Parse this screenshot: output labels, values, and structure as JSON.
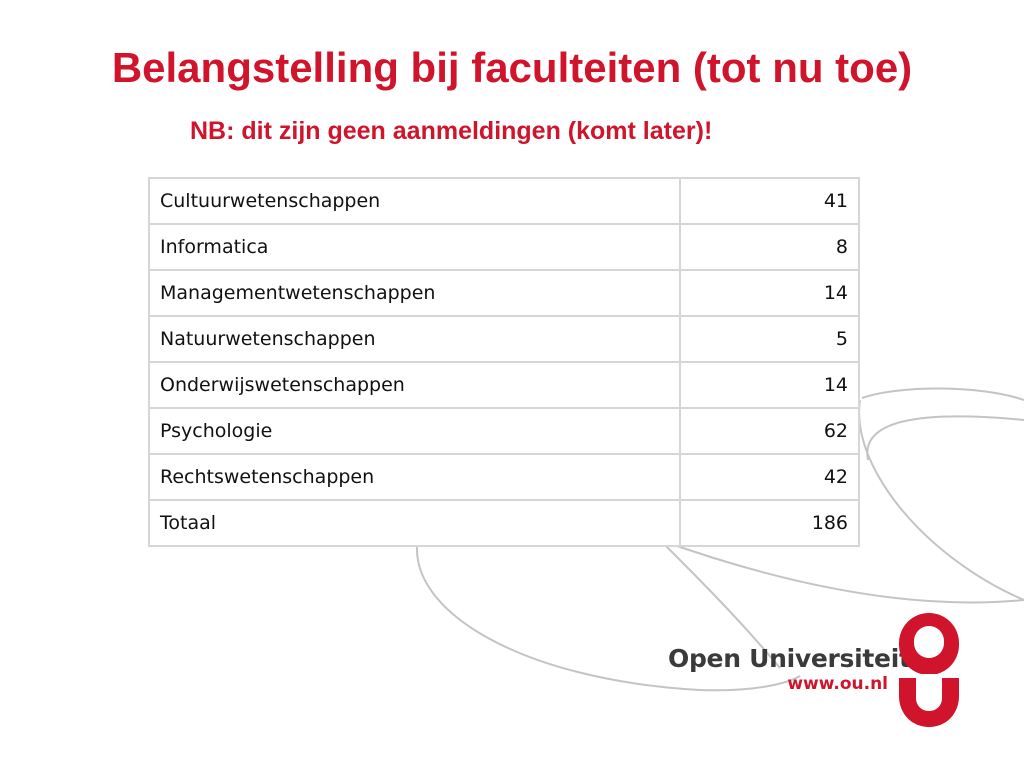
{
  "slide": {
    "title": "Belangstelling bij faculteiten (tot nu toe)",
    "subtitle": "NB: dit zijn geen aanmeldingen (komt later)!",
    "accent_color": "#d0142c"
  },
  "table": {
    "rows": [
      {
        "name": "Cultuurwetenschappen",
        "value": "41"
      },
      {
        "name": "Informatica",
        "value": "8"
      },
      {
        "name": "Managementwetenschappen",
        "value": "14"
      },
      {
        "name": "Natuurwetenschappen",
        "value": "5"
      },
      {
        "name": "Onderwijswetenschappen",
        "value": "14"
      },
      {
        "name": "Psychologie",
        "value": "62"
      },
      {
        "name": "Rechtswetenschappen",
        "value": "42"
      },
      {
        "name": "Totaal",
        "value": "186"
      }
    ]
  },
  "logo": {
    "name": "Open Universiteit",
    "url": "www.ou.nl",
    "icon": "ou-logo-mark"
  }
}
